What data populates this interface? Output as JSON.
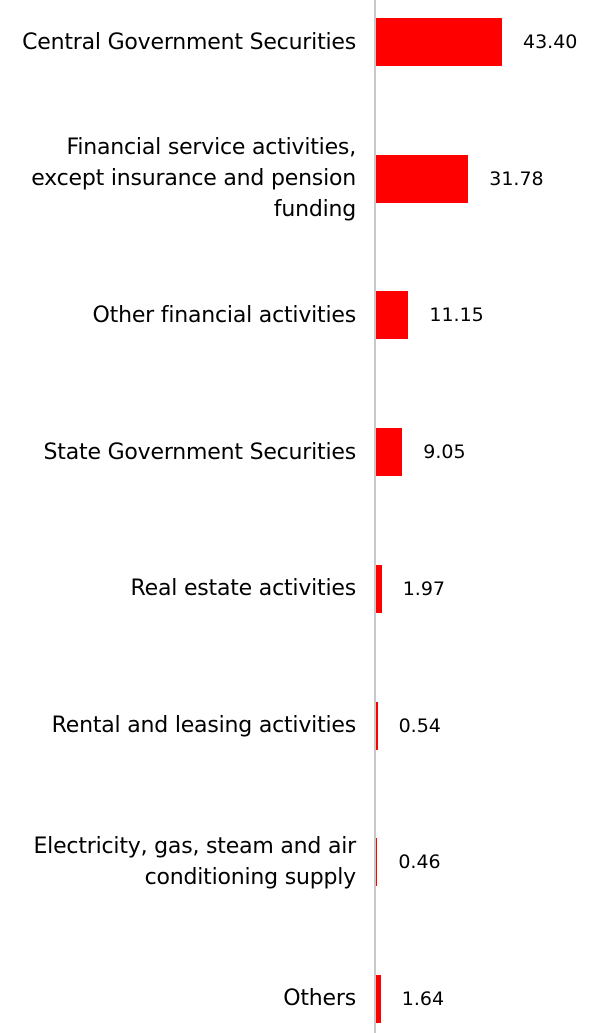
{
  "chart_data": {
    "type": "bar",
    "orientation": "horizontal",
    "categories": [
      "Central Government Securities",
      "Financial service activities, except insurance and pension funding",
      "Other financial activities",
      "State Government Securities",
      "Real estate activities",
      "Rental and leasing activities",
      "Electricity, gas, steam and air conditioning supply",
      "Others"
    ],
    "values": [
      43.4,
      31.78,
      11.15,
      9.05,
      1.97,
      0.54,
      0.46,
      1.64
    ],
    "value_labels": [
      "43.40",
      "31.78",
      "11.15",
      "9.05",
      "1.97",
      "0.54",
      "0.46",
      "1.64"
    ],
    "bar_color": "#ff0000",
    "xlim": [
      0,
      45
    ],
    "title": "",
    "xlabel": "",
    "ylabel": "",
    "grid": false,
    "legend": "none"
  }
}
